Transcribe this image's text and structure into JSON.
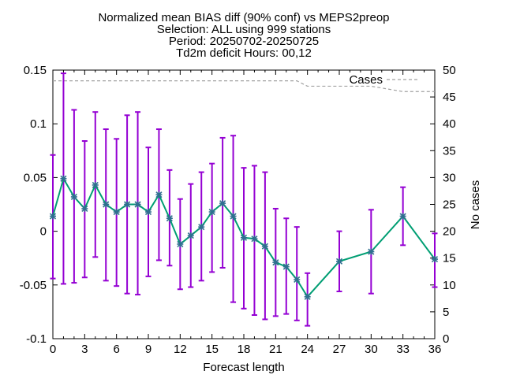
{
  "chart_data": {
    "type": "line",
    "title_lines": [
      "Normalized mean BIAS diff (90% conf) vs MEPS2preop",
      "Selection: ALL using   999 stations",
      "Period: 20250702-20250725",
      "Td2m deficit   Hours: 00,12"
    ],
    "xlabel": "Forecast length",
    "ylabel": "",
    "y2label": "No cases",
    "xlim": [
      0,
      36
    ],
    "ylim": [
      -0.1,
      0.15
    ],
    "y2lim": [
      0,
      50
    ],
    "x_ticks": [
      0,
      3,
      6,
      9,
      12,
      15,
      18,
      21,
      24,
      27,
      30,
      33,
      36
    ],
    "y_ticks": [
      -0.1,
      -0.05,
      0,
      0.05,
      0.1,
      0.15
    ],
    "y_tick_labels": [
      "-0.1",
      "-0.05",
      "0",
      "0.05",
      "0.1",
      "0.15"
    ],
    "y2_ticks": [
      0,
      5,
      10,
      15,
      20,
      25,
      30,
      35,
      40,
      45,
      50
    ],
    "colors": {
      "series": "#009e73",
      "errorbar": "#9400d3",
      "cases": "#a0a0a0",
      "axis": "#000000"
    },
    "series": [
      {
        "name": "",
        "x": [
          0,
          1,
          2,
          3,
          4,
          5,
          6,
          7,
          8,
          9,
          10,
          11,
          12,
          13,
          14,
          15,
          16,
          17,
          18,
          19,
          20,
          21,
          22,
          23,
          24,
          27,
          30,
          33,
          36
        ],
        "y": [
          0.014,
          0.049,
          0.032,
          0.021,
          0.043,
          0.025,
          0.018,
          0.025,
          0.025,
          0.018,
          0.034,
          0.012,
          -0.012,
          -0.004,
          0.004,
          0.018,
          0.026,
          0.014,
          -0.006,
          -0.007,
          -0.014,
          -0.029,
          -0.033,
          -0.045,
          -0.061,
          -0.028,
          -0.019,
          0.014,
          -0.026
        ],
        "err_low": [
          -0.044,
          -0.049,
          -0.048,
          -0.043,
          -0.024,
          -0.046,
          -0.051,
          -0.058,
          -0.059,
          -0.042,
          -0.027,
          -0.032,
          -0.054,
          -0.052,
          -0.046,
          -0.038,
          -0.034,
          -0.066,
          -0.072,
          -0.078,
          -0.082,
          -0.079,
          -0.077,
          -0.083,
          -0.088,
          -0.056,
          -0.058,
          -0.013,
          -0.052
        ],
        "err_high": [
          0.071,
          0.147,
          0.113,
          0.084,
          0.111,
          0.095,
          0.086,
          0.108,
          0.111,
          0.078,
          0.095,
          0.057,
          0.03,
          0.044,
          0.055,
          0.063,
          0.087,
          0.089,
          0.059,
          0.061,
          0.055,
          0.021,
          0.012,
          0.004,
          -0.039,
          0.0,
          0.02,
          0.041,
          -0.002
        ]
      }
    ],
    "cases": {
      "name": "Cases",
      "x": [
        0,
        1,
        2,
        3,
        4,
        5,
        6,
        7,
        8,
        9,
        10,
        11,
        12,
        13,
        14,
        15,
        16,
        17,
        18,
        19,
        20,
        21,
        22,
        23,
        24,
        27,
        30,
        33,
        36
      ],
      "y": [
        48,
        48,
        48,
        48,
        48,
        48,
        48,
        48,
        48,
        48,
        48,
        48,
        48,
        48,
        48,
        48,
        48,
        48,
        48,
        48,
        48,
        48,
        48,
        48,
        47,
        47,
        47,
        46,
        46
      ]
    },
    "legend": {
      "entry": "Cases",
      "position": "top-right"
    },
    "grid": false
  }
}
